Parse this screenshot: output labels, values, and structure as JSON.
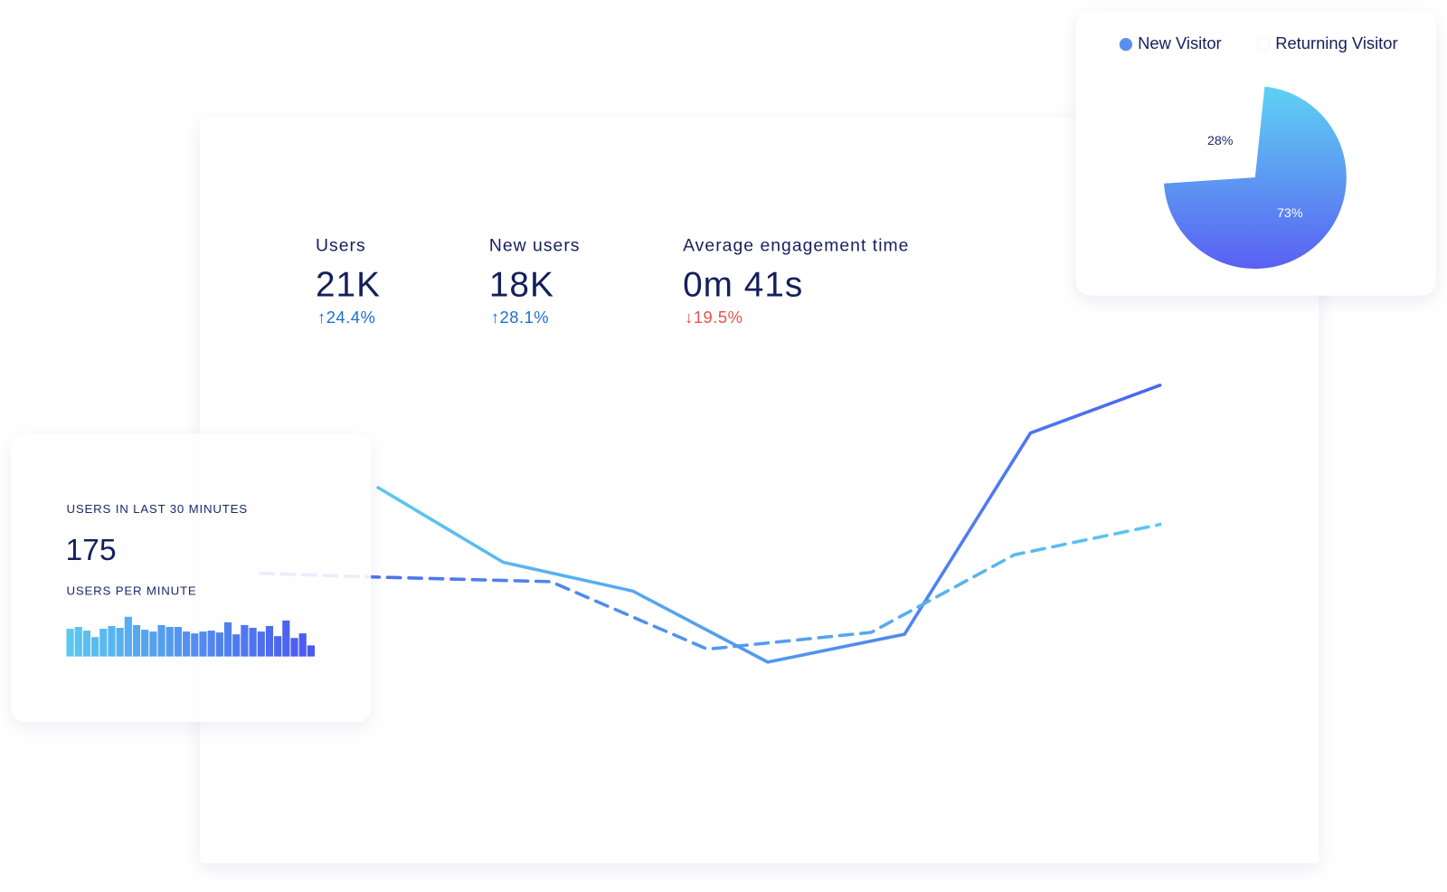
{
  "metrics": [
    {
      "label": "Users",
      "value": "21K",
      "change": "↑24.4%",
      "direction": "up"
    },
    {
      "label": "New users",
      "value": "18K",
      "change": "↑28.1%",
      "direction": "up"
    },
    {
      "label": "Average engagement time",
      "value": "0m 41s",
      "change": "↓19.5%",
      "direction": "down"
    }
  ],
  "realtime": {
    "label": "USERS IN LAST 30 MINUTES",
    "value": "175",
    "sublabel": "USERS PER MINUTE"
  },
  "chart_data": [
    {
      "type": "line",
      "xlim": [
        0,
        100
      ],
      "ylim": [
        0,
        100
      ],
      "series": [
        {
          "style": "solid",
          "color": [
            "#5bc8f0",
            "#4a66ee"
          ],
          "x": [
            13.1,
            27,
            41.4,
            56.4,
            71.6,
            85.6,
            100
          ],
          "values": [
            63.4,
            40.3,
            31.4,
            9.4,
            18,
            80.3,
            95.1
          ]
        },
        {
          "style": "dashed",
          "color": [
            "#4a66ee",
            "#5bc8f0"
          ],
          "x": [
            0,
            13.1,
            32.3,
            49.7,
            67.9,
            83.8,
            100
          ],
          "values": [
            36.9,
            35.7,
            34.3,
            13.4,
            18.6,
            42.6,
            52
          ]
        }
      ]
    },
    {
      "type": "bar",
      "ylim": [
        0,
        45
      ],
      "color": [
        "#5bc8f0",
        "#4a58ee"
      ],
      "values": [
        30,
        32,
        28,
        21,
        30,
        33,
        31,
        43,
        34,
        29,
        27,
        34,
        32,
        32,
        27,
        25,
        27,
        28,
        26,
        37,
        24,
        34,
        31,
        27,
        33,
        22,
        39,
        20,
        25,
        12
      ]
    },
    {
      "type": "pie",
      "colors": [
        [
          "#5fd2f3",
          "#5a60f2"
        ],
        "#ffffff"
      ],
      "series": [
        {
          "name": "New Visitor",
          "values": [
            73
          ],
          "value_labels": [
            "73%"
          ]
        },
        {
          "name": "Returning Visitor",
          "values": [
            28
          ],
          "value_labels": [
            "28%"
          ]
        }
      ]
    }
  ]
}
